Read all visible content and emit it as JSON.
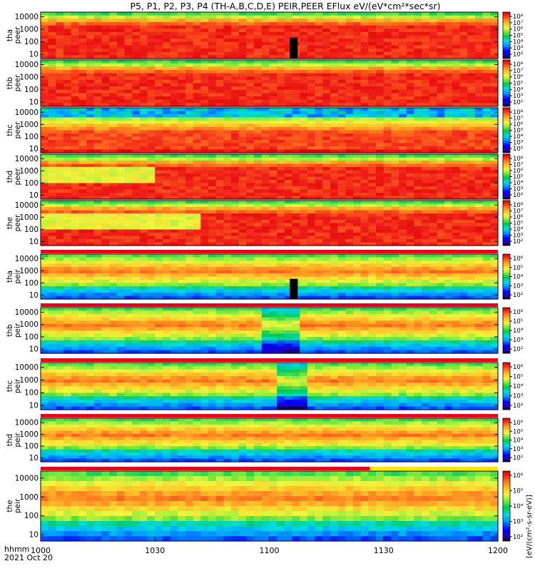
{
  "title": "P5, P1, P2, P3, P4 (TH-A,B,C,D,E) PEIR,PEER EFlux eV/(eV*cm²*sec*sr)",
  "footer": {
    "hhmm": "hhmm",
    "date": "2021 Oct 20"
  },
  "colorbar_side_text": "[eV/(cm²-s-sr-eV)]",
  "chart_data": {
    "type": "heatmap",
    "x_ticks": [
      "1000",
      "1030",
      "1100",
      "1130",
      "1200"
    ],
    "y_ticks": [
      "10000",
      "1000",
      "100",
      "10"
    ],
    "yscale": "log",
    "xlim": [
      "10:00",
      "12:00"
    ],
    "colorbar_ticks_peer": [
      "10⁸",
      "10⁷",
      "10⁶",
      "10⁵",
      "10⁴",
      "10³",
      "10²"
    ],
    "colorbar_ticks_peir": [
      "10⁶",
      "10⁵",
      "10⁴",
      "10³",
      "10²"
    ],
    "panels": [
      {
        "probe": "tha",
        "species": "peer",
        "style": "peer",
        "gap": 0.545
      },
      {
        "probe": "thb",
        "species": "peer",
        "style": "peer"
      },
      {
        "probe": "thc",
        "species": "peer",
        "style": "peerc"
      },
      {
        "probe": "thd",
        "species": "peer",
        "style": "peer",
        "shift": 0.25
      },
      {
        "probe": "the",
        "species": "peer",
        "style": "peer",
        "shift": 0.35
      },
      {
        "probe": "tha",
        "species": "peir",
        "style": "peir",
        "gap": 0.545
      },
      {
        "probe": "thb",
        "species": "peir",
        "style": "peir",
        "dip": 0.52
      },
      {
        "probe": "thc",
        "species": "peir",
        "style": "peir",
        "dip": 0.55
      },
      {
        "probe": "thd",
        "species": "peir",
        "style": "peir"
      },
      {
        "probe": "the",
        "species": "peir",
        "style": "peir"
      }
    ]
  }
}
